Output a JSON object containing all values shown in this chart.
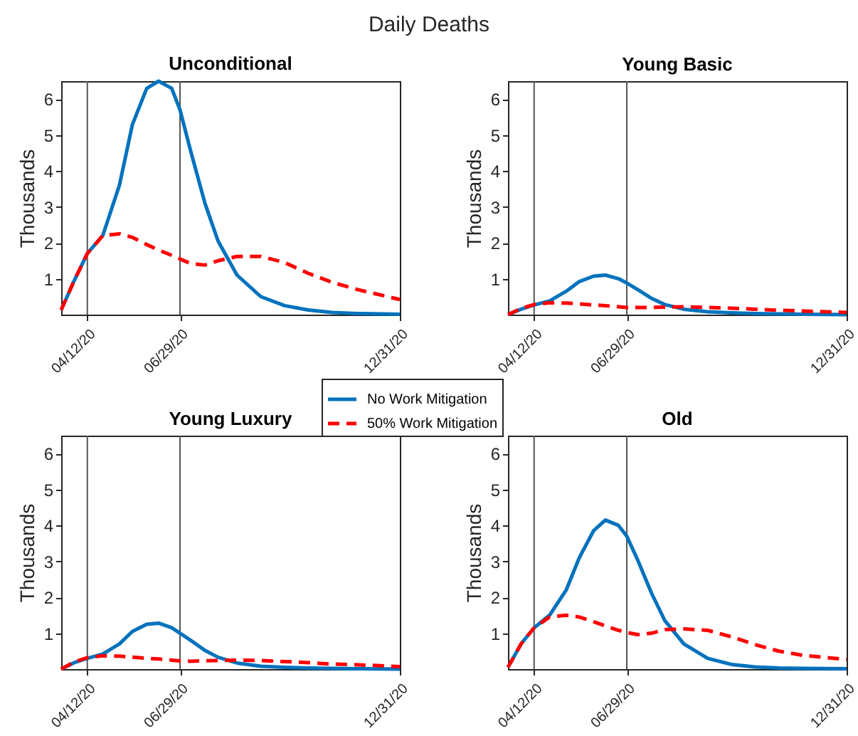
{
  "chart_data": [
    {
      "type": "line",
      "title": "Unconditional",
      "annotations": [
        "Daily Deaths"
      ],
      "ylabel": "Thousands",
      "legend": "bottom",
      "grid": false,
      "marker": "none",
      "x": [
        "2020-03-21",
        "2020-04-01",
        "2020-04-12",
        "2020-04-25",
        "2020-05-09",
        "2020-05-20",
        "2020-06-01",
        "2020-06-11",
        "2020-06-22",
        "2020-06-29",
        "2020-07-08",
        "2020-07-20",
        "2020-07-31",
        "2020-08-16",
        "2020-09-05",
        "2020-09-25",
        "2020-10-15",
        "2020-11-04",
        "2020-11-25",
        "2020-12-31"
      ],
      "xlim": [
        "2020-03-21",
        "2020-12-31"
      ],
      "xticks": [
        {
          "value": "2020-04-12",
          "label": "04/12/20"
        },
        {
          "value": "2020-06-29",
          "label": "06/29/20"
        },
        {
          "value": "2020-12-31",
          "label": "12/31/20"
        }
      ],
      "ylim": [
        0,
        6.5
      ],
      "yticks": [
        1,
        2,
        3,
        4,
        5,
        6
      ],
      "ref_lines": [
        {
          "axis": "x",
          "value": "2020-04-12",
          "color": "#555555"
        },
        {
          "axis": "x",
          "value": "2020-06-29",
          "color": "#555555"
        }
      ],
      "series": [
        {
          "name": "No Work Mitigation",
          "color": "#0072bd",
          "line_style": "solid",
          "values": [
            0.13,
            0.95,
            1.7,
            2.2,
            3.6,
            5.3,
            6.3,
            6.5,
            6.3,
            5.7,
            4.55,
            3.1,
            2.05,
            1.1,
            0.5,
            0.25,
            0.13,
            0.06,
            0.03,
            0.01
          ]
        },
        {
          "name": "50% Work Mitigation",
          "color": "#ff0000",
          "line_style": "dashed",
          "values": [
            0.13,
            0.95,
            1.7,
            2.2,
            2.25,
            2.15,
            1.95,
            1.8,
            1.65,
            1.55,
            1.42,
            1.38,
            1.5,
            1.62,
            1.62,
            1.45,
            1.15,
            0.9,
            0.7,
            0.42
          ]
        }
      ]
    },
    {
      "type": "line",
      "title": "Young Basic",
      "ylabel": "Thousands",
      "grid": false,
      "marker": "none",
      "x": [
        "2020-03-21",
        "2020-04-01",
        "2020-04-12",
        "2020-04-25",
        "2020-05-09",
        "2020-05-20",
        "2020-06-01",
        "2020-06-11",
        "2020-06-22",
        "2020-06-29",
        "2020-07-08",
        "2020-07-20",
        "2020-07-31",
        "2020-08-16",
        "2020-09-05",
        "2020-09-25",
        "2020-10-15",
        "2020-11-04",
        "2020-11-25",
        "2020-12-31"
      ],
      "xlim": [
        "2020-03-21",
        "2020-12-31"
      ],
      "xticks": [
        {
          "value": "2020-04-12",
          "label": "04/12/20"
        },
        {
          "value": "2020-06-29",
          "label": "06/29/20"
        },
        {
          "value": "2020-12-31",
          "label": "12/31/20"
        }
      ],
      "ylim": [
        0,
        6.5
      ],
      "yticks": [
        1,
        2,
        3,
        4,
        5,
        6
      ],
      "ref_lines": [
        {
          "axis": "x",
          "value": "2020-04-12",
          "color": "#555555"
        },
        {
          "axis": "x",
          "value": "2020-06-29",
          "color": "#555555"
        }
      ],
      "series": [
        {
          "color": "#0072bd",
          "line_style": "solid",
          "values": [
            0,
            0.15,
            0.27,
            0.38,
            0.65,
            0.92,
            1.07,
            1.1,
            1.0,
            0.88,
            0.7,
            0.45,
            0.28,
            0.15,
            0.08,
            0.05,
            0.03,
            0.02,
            0.01,
            0
          ]
        },
        {
          "color": "#ff0000",
          "line_style": "dashed",
          "values": [
            0,
            0.17,
            0.28,
            0.33,
            0.32,
            0.3,
            0.27,
            0.25,
            0.22,
            0.2,
            0.2,
            0.2,
            0.21,
            0.22,
            0.2,
            0.18,
            0.15,
            0.12,
            0.1,
            0.06
          ]
        }
      ]
    },
    {
      "type": "line",
      "title": "Young Luxury",
      "ylabel": "Thousands",
      "grid": false,
      "marker": "none",
      "x": [
        "2020-03-21",
        "2020-04-01",
        "2020-04-12",
        "2020-04-25",
        "2020-05-09",
        "2020-05-20",
        "2020-06-01",
        "2020-06-11",
        "2020-06-22",
        "2020-06-29",
        "2020-07-08",
        "2020-07-20",
        "2020-07-31",
        "2020-08-16",
        "2020-09-05",
        "2020-09-25",
        "2020-10-15",
        "2020-11-04",
        "2020-11-25",
        "2020-12-31"
      ],
      "xlim": [
        "2020-03-21",
        "2020-12-31"
      ],
      "xticks": [
        {
          "value": "2020-04-12",
          "label": "04/12/20"
        },
        {
          "value": "2020-06-29",
          "label": "06/29/20"
        },
        {
          "value": "2020-12-31",
          "label": "12/31/20"
        }
      ],
      "ylim": [
        0,
        6.5
      ],
      "yticks": [
        1,
        2,
        3,
        4,
        5,
        6
      ],
      "ref_lines": [
        {
          "axis": "x",
          "value": "2020-04-12",
          "color": "#555555"
        },
        {
          "axis": "x",
          "value": "2020-06-29",
          "color": "#555555"
        }
      ],
      "series": [
        {
          "color": "#0072bd",
          "line_style": "solid",
          "values": [
            0,
            0.18,
            0.3,
            0.42,
            0.7,
            1.05,
            1.25,
            1.28,
            1.15,
            1.0,
            0.8,
            0.52,
            0.33,
            0.17,
            0.08,
            0.05,
            0.03,
            0.02,
            0.01,
            0
          ]
        },
        {
          "color": "#ff0000",
          "line_style": "dashed",
          "values": [
            0,
            0.2,
            0.32,
            0.37,
            0.36,
            0.33,
            0.3,
            0.28,
            0.25,
            0.23,
            0.22,
            0.23,
            0.24,
            0.25,
            0.24,
            0.21,
            0.18,
            0.14,
            0.12,
            0.07
          ]
        }
      ]
    },
    {
      "type": "line",
      "title": "Old",
      "ylabel": "Thousands",
      "grid": false,
      "marker": "none",
      "x": [
        "2020-03-21",
        "2020-04-01",
        "2020-04-12",
        "2020-04-25",
        "2020-05-09",
        "2020-05-20",
        "2020-06-01",
        "2020-06-11",
        "2020-06-22",
        "2020-06-29",
        "2020-07-08",
        "2020-07-20",
        "2020-07-31",
        "2020-08-16",
        "2020-09-05",
        "2020-09-25",
        "2020-10-15",
        "2020-11-04",
        "2020-11-25",
        "2020-12-31"
      ],
      "xlim": [
        "2020-03-21",
        "2020-12-31"
      ],
      "xticks": [
        {
          "value": "2020-04-12",
          "label": "04/12/20"
        },
        {
          "value": "2020-06-29",
          "label": "06/29/20"
        },
        {
          "value": "2020-12-31",
          "label": "12/31/20"
        }
      ],
      "ylim": [
        0,
        6.5
      ],
      "yticks": [
        1,
        2,
        3,
        4,
        5,
        6
      ],
      "ref_lines": [
        {
          "axis": "x",
          "value": "2020-04-12",
          "color": "#555555"
        },
        {
          "axis": "x",
          "value": "2020-06-29",
          "color": "#555555"
        }
      ],
      "series": [
        {
          "color": "#0072bd",
          "line_style": "solid",
          "values": [
            0.05,
            0.7,
            1.15,
            1.5,
            2.2,
            3.1,
            3.85,
            4.15,
            4.0,
            3.7,
            3.05,
            2.1,
            1.35,
            0.7,
            0.3,
            0.13,
            0.06,
            0.03,
            0.02,
            0.01
          ]
        },
        {
          "color": "#ff0000",
          "line_style": "dashed",
          "values": [
            0.05,
            0.7,
            1.15,
            1.45,
            1.5,
            1.45,
            1.32,
            1.2,
            1.08,
            1.02,
            0.96,
            1.0,
            1.1,
            1.12,
            1.08,
            0.9,
            0.68,
            0.5,
            0.38,
            0.27
          ]
        }
      ]
    }
  ]
}
